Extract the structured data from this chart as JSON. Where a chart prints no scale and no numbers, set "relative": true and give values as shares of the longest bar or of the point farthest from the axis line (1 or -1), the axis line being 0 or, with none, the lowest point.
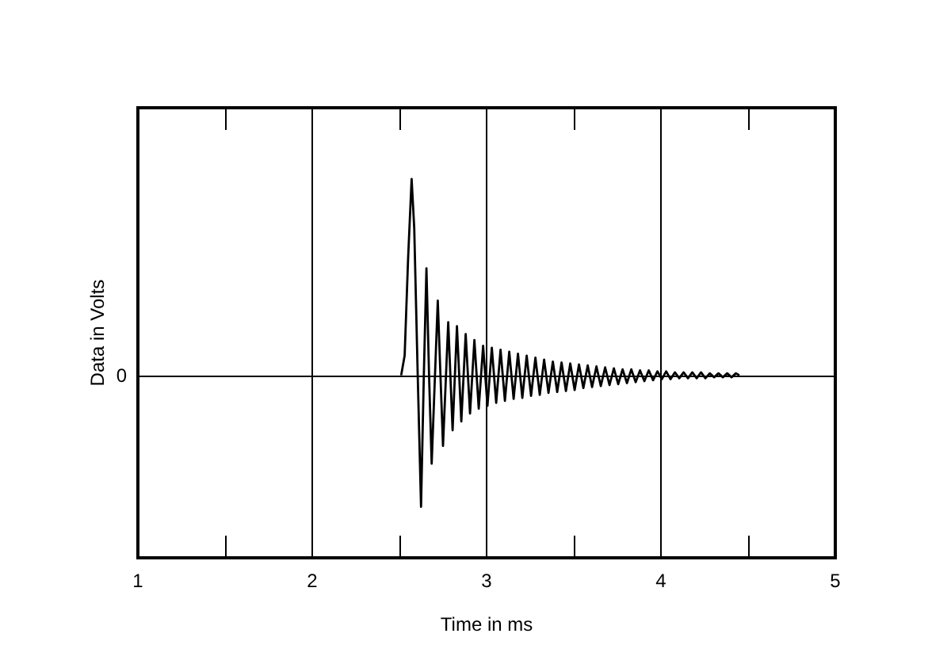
{
  "chart_data": {
    "type": "line",
    "xlabel": "Time in ms",
    "ylabel": "Data in Volts",
    "relative": true,
    "xlim": [
      1,
      5
    ],
    "xticks": [
      1,
      2,
      3,
      4,
      5
    ],
    "grid": "x",
    "marker": "none",
    "line_style": "solid",
    "ref_lines": [
      {
        "axis": "y",
        "value": 0,
        "label": "0",
        "color": "#000000"
      }
    ],
    "series": [
      {
        "color": "#000000",
        "x": [
          2.51,
          2.53,
          2.55,
          2.57,
          2.585,
          2.605,
          2.624,
          2.64,
          2.655,
          2.67,
          2.685,
          2.72,
          2.75,
          2.78,
          2.805,
          2.83,
          2.855,
          2.88,
          2.905,
          2.93,
          2.955,
          2.98,
          3.005,
          3.03,
          3.055,
          3.08,
          3.105,
          3.13,
          3.155,
          3.18,
          3.205,
          3.23,
          3.255,
          3.28,
          3.305,
          3.33,
          3.355,
          3.38,
          3.405,
          3.43,
          3.455,
          3.48,
          3.505,
          3.53,
          3.555,
          3.58,
          3.605,
          3.63,
          3.655,
          3.68,
          3.705,
          3.73,
          3.755,
          3.78,
          3.805,
          3.83,
          3.855,
          3.88,
          3.905,
          3.93,
          3.955,
          3.98,
          4.005,
          4.03,
          4.055,
          4.08,
          4.105,
          4.13,
          4.155,
          4.18,
          4.205,
          4.23,
          4.255,
          4.28,
          4.305,
          4.33,
          4.355,
          4.38,
          4.405,
          4.43,
          4.45
        ],
        "values": [
          0,
          0.1,
          0.6,
          1,
          0.75,
          0,
          -0.67,
          0,
          0.545,
          0,
          -0.45,
          0.38,
          -0.36,
          0.27,
          -0.28,
          0.25,
          -0.235,
          0.21,
          -0.195,
          0.18,
          -0.17,
          0.15,
          -0.155,
          0.14,
          -0.14,
          0.13,
          -0.13,
          0.12,
          -0.12,
          0.11,
          -0.115,
          0.1,
          -0.105,
          0.09,
          -0.1,
          0.08,
          -0.09,
          0.07,
          -0.085,
          0.065,
          -0.08,
          0.06,
          -0.075,
          0.055,
          -0.065,
          0.05,
          -0.06,
          0.045,
          -0.055,
          0.04,
          -0.05,
          0.035,
          -0.045,
          0.03,
          -0.04,
          0.03,
          -0.035,
          0.025,
          -0.03,
          0.025,
          -0.025,
          0.02,
          -0.02,
          0.02,
          -0.02,
          0.015,
          -0.015,
          0.015,
          -0.015,
          0.015,
          -0.015,
          0.015,
          -0.015,
          0.01,
          -0.01,
          0.01,
          -0.01,
          0.01,
          -0.01,
          0.01,
          0
        ]
      }
    ]
  }
}
